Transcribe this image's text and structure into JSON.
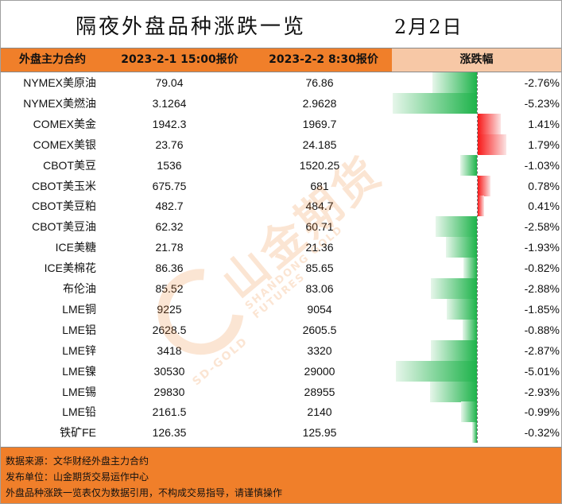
{
  "title": "隔夜外盘品种涨跌一览",
  "date": "2月2日",
  "columns": {
    "name": "外盘主力合约",
    "price1": "2023-2-1 15:00报价",
    "price2": "2023-2-2 8:30报价",
    "change": "涨跌幅"
  },
  "chart_data": {
    "type": "table",
    "rows": [
      {
        "name": "NYMEX美原油",
        "p1": "79.04",
        "p2": "76.86",
        "pct": "-2.76%",
        "v": -2.76
      },
      {
        "name": "NYMEX美燃油",
        "p1": "3.1264",
        "p2": "2.9628",
        "pct": "-5.23%",
        "v": -5.23
      },
      {
        "name": "COMEX美金",
        "p1": "1942.3",
        "p2": "1969.7",
        "pct": "1.41%",
        "v": 1.41
      },
      {
        "name": "COMEX美银",
        "p1": "23.76",
        "p2": "24.185",
        "pct": "1.79%",
        "v": 1.79
      },
      {
        "name": "CBOT美豆",
        "p1": "1536",
        "p2": "1520.25",
        "pct": "-1.03%",
        "v": -1.03
      },
      {
        "name": "CBOT美玉米",
        "p1": "675.75",
        "p2": "681",
        "pct": "0.78%",
        "v": 0.78
      },
      {
        "name": "CBOT美豆粕",
        "p1": "482.7",
        "p2": "484.7",
        "pct": "0.41%",
        "v": 0.41
      },
      {
        "name": "CBOT美豆油",
        "p1": "62.32",
        "p2": "60.71",
        "pct": "-2.58%",
        "v": -2.58
      },
      {
        "name": "ICE美糖",
        "p1": "21.78",
        "p2": "21.36",
        "pct": "-1.93%",
        "v": -1.93
      },
      {
        "name": "ICE美棉花",
        "p1": "86.36",
        "p2": "85.65",
        "pct": "-0.82%",
        "v": -0.82
      },
      {
        "name": "布伦油",
        "p1": "85.52",
        "p2": "83.06",
        "pct": "-2.88%",
        "v": -2.88
      },
      {
        "name": "LME铜",
        "p1": "9225",
        "p2": "9054",
        "pct": "-1.85%",
        "v": -1.85
      },
      {
        "name": "LME铝",
        "p1": "2628.5",
        "p2": "2605.5",
        "pct": "-0.88%",
        "v": -0.88
      },
      {
        "name": "LME锌",
        "p1": "3418",
        "p2": "3320",
        "pct": "-2.87%",
        "v": -2.87
      },
      {
        "name": "LME镍",
        "p1": "30530",
        "p2": "29000",
        "pct": "-5.01%",
        "v": -5.01
      },
      {
        "name": "LME锡",
        "p1": "29830",
        "p2": "28955",
        "pct": "-2.93%",
        "v": -2.93
      },
      {
        "name": "LME铅",
        "p1": "2161.5",
        "p2": "2140",
        "pct": "-0.99%",
        "v": -0.99
      },
      {
        "name": "铁矿FE",
        "p1": "126.35",
        "p2": "125.95",
        "pct": "-0.32%",
        "v": -0.32
      }
    ]
  },
  "footer": {
    "line1": "数据来源：文华财经外盘主力合约",
    "line2": "发布单位：山金期货交易运作中心",
    "line3": "外盘品种涨跌一览表仅为数据引用，不构成交易指导，请谨慎操作"
  },
  "watermark": {
    "cn": "山金期货",
    "en": "SHANDONG GOLD FUTURES",
    "en2": "SD-GOLD"
  },
  "colors": {
    "header": "#f07f2a",
    "negative": "#1db34a",
    "positive": "#f81818"
  }
}
